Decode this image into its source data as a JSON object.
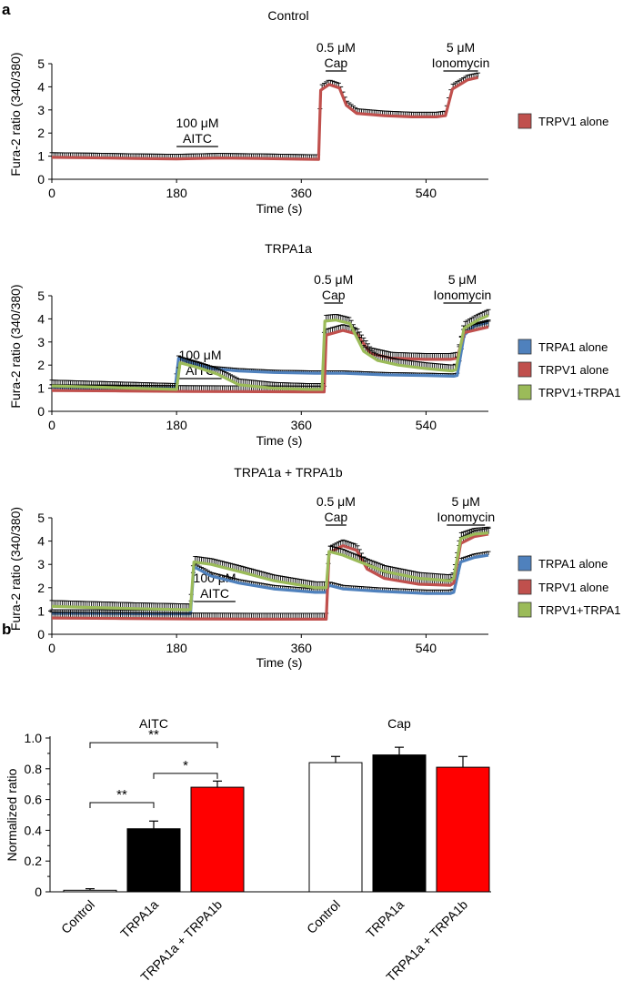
{
  "panel_labels": {
    "a": "a",
    "b": "b"
  },
  "colors": {
    "trpa1": "#4f81bd",
    "trpv1": "#c0504d",
    "both": "#9bbb59",
    "bar_trpa1a": "#000000",
    "bar_both": "#ff0000",
    "bar_control": "#ffffff"
  },
  "chart_data": [
    {
      "id": "control",
      "type": "line",
      "title": "Control",
      "xlabel": "Time (s)",
      "ylabel": "Fura-2 ratio (340/380)",
      "xlim": [
        0,
        630
      ],
      "ylim": [
        0,
        5
      ],
      "xticks": [
        0,
        180,
        360,
        540
      ],
      "yticks": [
        0,
        1,
        2,
        3,
        4,
        5
      ],
      "stimuli": [
        {
          "line1": "100 μM",
          "line2": "AITC",
          "t0": 180,
          "t1": 240
        },
        {
          "line1": "0.5 μM",
          "line2": "Cap",
          "t0": 395,
          "t1": 425
        },
        {
          "line1": "5 μM",
          "line2": "Ionomycin",
          "t0": 565,
          "t1": 615
        }
      ],
      "series": [
        {
          "name": "TRPV1 alone",
          "color": "#c0504d",
          "err": 0.2,
          "points": [
            [
              0,
              0.95
            ],
            [
              60,
              0.93
            ],
            [
              120,
              0.9
            ],
            [
              180,
              0.88
            ],
            [
              240,
              0.92
            ],
            [
              300,
              0.9
            ],
            [
              360,
              0.87
            ],
            [
              385,
              0.86
            ],
            [
              388,
              3.85
            ],
            [
              400,
              4.1
            ],
            [
              415,
              3.95
            ],
            [
              425,
              3.2
            ],
            [
              440,
              2.85
            ],
            [
              480,
              2.75
            ],
            [
              520,
              2.7
            ],
            [
              555,
              2.7
            ],
            [
              568,
              2.75
            ],
            [
              578,
              3.9
            ],
            [
              600,
              4.3
            ],
            [
              615,
              4.4
            ]
          ]
        }
      ]
    },
    {
      "id": "trpa1a",
      "type": "line",
      "title": "TRPA1a",
      "xlabel": "Time (s)",
      "ylabel": "Fura-2 ratio (340/380)",
      "xlim": [
        0,
        630
      ],
      "ylim": [
        0,
        5
      ],
      "xticks": [
        0,
        180,
        360,
        540
      ],
      "yticks": [
        0,
        1,
        2,
        3,
        4,
        5
      ],
      "stimuli": [
        {
          "line1": "100 μM",
          "line2": "AITC",
          "t0": 183,
          "t1": 245
        },
        {
          "line1": "0.5 μM",
          "line2": "Cap",
          "t0": 393,
          "t1": 420
        },
        {
          "line1": "5 μM",
          "line2": "Ionomycin",
          "t0": 565,
          "t1": 620
        }
      ],
      "series": [
        {
          "name": "TRPA1 alone",
          "color": "#4f81bd",
          "err": 0.1,
          "points": [
            [
              0,
              1.05
            ],
            [
              60,
              1.0
            ],
            [
              120,
              1.0
            ],
            [
              178,
              1.0
            ],
            [
              183,
              2.3
            ],
            [
              200,
              2.1
            ],
            [
              230,
              1.85
            ],
            [
              270,
              1.75
            ],
            [
              320,
              1.68
            ],
            [
              380,
              1.65
            ],
            [
              420,
              1.65
            ],
            [
              480,
              1.58
            ],
            [
              540,
              1.55
            ],
            [
              580,
              1.52
            ],
            [
              585,
              1.55
            ],
            [
              595,
              3.3
            ],
            [
              610,
              3.7
            ],
            [
              630,
              3.85
            ]
          ]
        },
        {
          "name": "TRPV1 alone",
          "color": "#c0504d",
          "err": 0.25,
          "points": [
            [
              0,
              0.9
            ],
            [
              100,
              0.88
            ],
            [
              200,
              0.86
            ],
            [
              300,
              0.85
            ],
            [
              370,
              0.84
            ],
            [
              393,
              0.84
            ],
            [
              396,
              3.3
            ],
            [
              420,
              3.5
            ],
            [
              440,
              3.35
            ],
            [
              460,
              2.5
            ],
            [
              490,
              2.3
            ],
            [
              540,
              2.25
            ],
            [
              575,
              2.25
            ],
            [
              585,
              2.3
            ],
            [
              595,
              3.4
            ],
            [
              630,
              3.65
            ]
          ]
        },
        {
          "name": "TRPV1+TRPA1",
          "color": "#9bbb59",
          "err": 0.25,
          "points": [
            [
              0,
              1.1
            ],
            [
              60,
              1.05
            ],
            [
              120,
              1.0
            ],
            [
              180,
              0.95
            ],
            [
              185,
              2.1
            ],
            [
              210,
              1.9
            ],
            [
              240,
              1.6
            ],
            [
              270,
              1.15
            ],
            [
              320,
              1.0
            ],
            [
              370,
              0.95
            ],
            [
              390,
              0.95
            ],
            [
              394,
              3.9
            ],
            [
              410,
              3.95
            ],
            [
              430,
              3.8
            ],
            [
              450,
              2.6
            ],
            [
              470,
              2.2
            ],
            [
              500,
              2.0
            ],
            [
              540,
              1.85
            ],
            [
              578,
              1.75
            ],
            [
              583,
              1.8
            ],
            [
              595,
              3.6
            ],
            [
              615,
              3.95
            ],
            [
              630,
              4.15
            ]
          ]
        }
      ]
    },
    {
      "id": "trpa1a_trpa1b",
      "type": "line",
      "title": "TRPA1a + TRPA1b",
      "xlabel": "Time (s)",
      "ylabel": "Fura-2 ratio (340/380)",
      "xlim": [
        0,
        630
      ],
      "ylim": [
        0,
        5
      ],
      "xticks": [
        0,
        180,
        360,
        540
      ],
      "yticks": [
        0,
        1,
        2,
        3,
        4,
        5
      ],
      "stimuli": [
        {
          "line1": "100 μM",
          "line2": "AITC",
          "t0": 205,
          "t1": 265
        },
        {
          "line1": "0.5 μM",
          "line2": "Cap",
          "t0": 395,
          "t1": 425
        },
        {
          "line1": "5 μM",
          "line2": "Ionomycin",
          "t0": 570,
          "t1": 625
        }
      ],
      "series": [
        {
          "name": "TRPA1 alone",
          "color": "#4f81bd",
          "err": 0.15,
          "points": [
            [
              0,
              0.9
            ],
            [
              60,
              0.9
            ],
            [
              150,
              0.88
            ],
            [
              200,
              0.88
            ],
            [
              205,
              2.9
            ],
            [
              230,
              2.5
            ],
            [
              270,
              2.2
            ],
            [
              320,
              1.95
            ],
            [
              380,
              1.8
            ],
            [
              395,
              1.8
            ],
            [
              400,
              2.1
            ],
            [
              420,
              1.95
            ],
            [
              470,
              1.85
            ],
            [
              540,
              1.75
            ],
            [
              575,
              1.75
            ],
            [
              580,
              1.8
            ],
            [
              590,
              3.1
            ],
            [
              610,
              3.3
            ],
            [
              630,
              3.4
            ]
          ]
        },
        {
          "name": "TRPV1 alone",
          "color": "#c0504d",
          "err": 0.25,
          "points": [
            [
              0,
              0.7
            ],
            [
              100,
              0.68
            ],
            [
              200,
              0.66
            ],
            [
              300,
              0.65
            ],
            [
              380,
              0.65
            ],
            [
              396,
              0.65
            ],
            [
              400,
              3.5
            ],
            [
              420,
              3.8
            ],
            [
              440,
              3.6
            ],
            [
              455,
              2.8
            ],
            [
              480,
              2.4
            ],
            [
              530,
              2.15
            ],
            [
              575,
              2.1
            ],
            [
              580,
              2.2
            ],
            [
              590,
              3.9
            ],
            [
              610,
              4.2
            ],
            [
              630,
              4.3
            ]
          ]
        },
        {
          "name": "TRPV1+TRPA1",
          "color": "#9bbb59",
          "err": 0.25,
          "points": [
            [
              0,
              1.2
            ],
            [
              60,
              1.15
            ],
            [
              120,
              1.1
            ],
            [
              200,
              1.05
            ],
            [
              205,
              3.1
            ],
            [
              230,
              3.0
            ],
            [
              270,
              2.7
            ],
            [
              320,
              2.3
            ],
            [
              380,
              2.0
            ],
            [
              396,
              2.0
            ],
            [
              400,
              3.55
            ],
            [
              420,
              3.4
            ],
            [
              445,
              3.1
            ],
            [
              480,
              2.7
            ],
            [
              530,
              2.4
            ],
            [
              575,
              2.3
            ],
            [
              580,
              2.4
            ],
            [
              590,
              4.1
            ],
            [
              610,
              4.3
            ],
            [
              630,
              4.35
            ]
          ]
        }
      ]
    },
    {
      "id": "normalized",
      "type": "bar",
      "ylabel": "Normalized ratio",
      "ylim": [
        0,
        1.0
      ],
      "yticks": [
        0,
        0.2,
        0.4,
        0.6,
        0.8,
        1.0
      ],
      "ytick_labels": [
        "0",
        "0.2",
        "0.4",
        "0.6",
        "0.8",
        "1.0"
      ],
      "groups": [
        {
          "title": "AITC",
          "categories": [
            "Control",
            "TRPA1a",
            "TRPA1a + TRPA1b"
          ],
          "values": [
            0.01,
            0.41,
            0.68
          ],
          "errors": [
            0.01,
            0.05,
            0.04
          ],
          "colors": [
            "#ffffff",
            "#000000",
            "#ff0000"
          ]
        },
        {
          "title": "Cap",
          "categories": [
            "Control",
            "TRPA1a",
            "TRPA1a + TRPA1b"
          ],
          "values": [
            0.84,
            0.89,
            0.81
          ],
          "errors": [
            0.04,
            0.05,
            0.07
          ],
          "colors": [
            "#ffffff",
            "#000000",
            "#ff0000"
          ]
        }
      ],
      "significance": [
        {
          "group": 0,
          "from": 0,
          "to": 2,
          "label": "**",
          "y": 0.97
        },
        {
          "group": 0,
          "from": 1,
          "to": 2,
          "label": "*",
          "y": 0.77
        },
        {
          "group": 0,
          "from": 0,
          "to": 1,
          "label": "**",
          "y": 0.58
        }
      ]
    }
  ]
}
